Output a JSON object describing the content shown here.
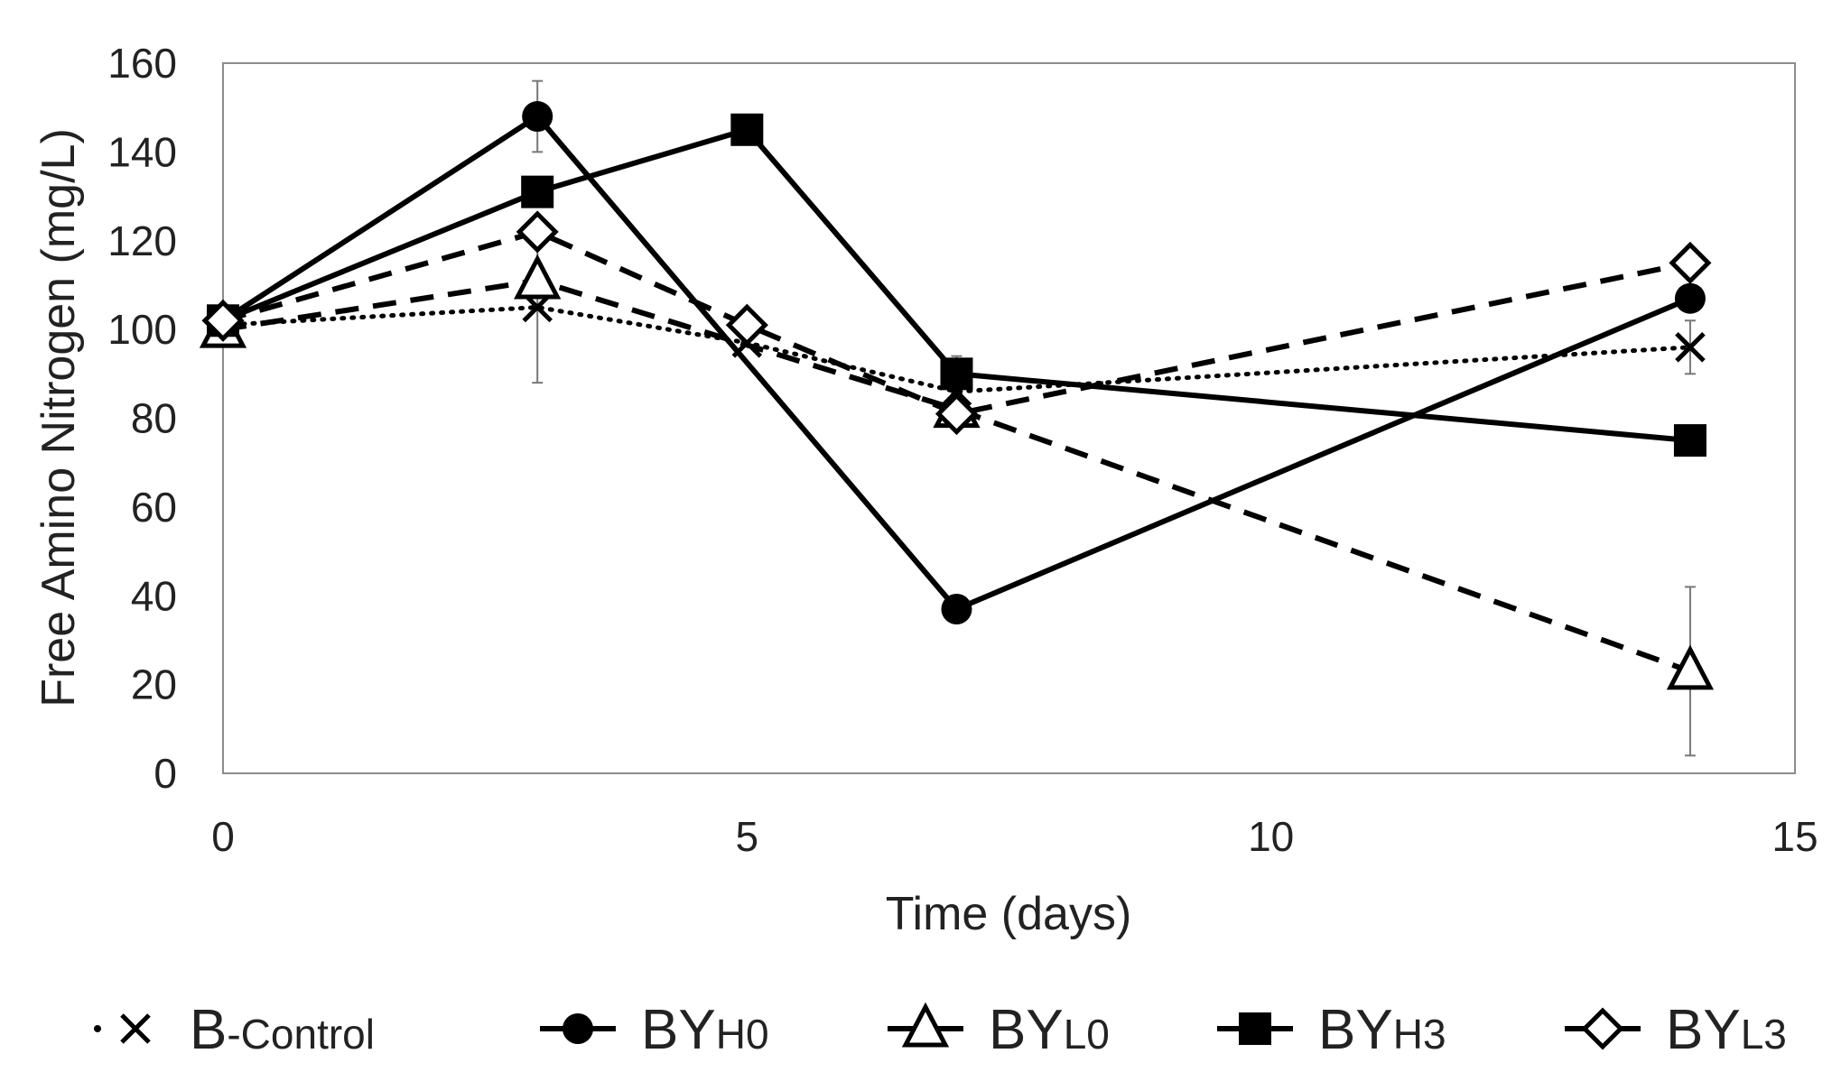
{
  "chart_data": {
    "type": "line",
    "title": "",
    "xlabel": "Time (days)",
    "ylabel": "Free Amino Nitrogen (mg/L)",
    "xlim": [
      0,
      15
    ],
    "ylim": [
      0,
      160
    ],
    "xticks": [
      0,
      5,
      10,
      15
    ],
    "yticks": [
      0,
      20,
      40,
      60,
      80,
      100,
      120,
      140,
      160
    ],
    "grid": false,
    "legend_position": "bottom",
    "series": [
      {
        "name": "B-Control",
        "legend_main": "B",
        "legend_sub": "-Control",
        "marker": "x",
        "line": "dotted",
        "x": [
          0,
          3,
          5,
          7,
          14
        ],
        "y": [
          101,
          105,
          97,
          86,
          96
        ],
        "err": [
          0,
          17,
          0,
          8,
          6
        ]
      },
      {
        "name": "BYH0",
        "legend_main": "BY",
        "legend_sub": "H0",
        "marker": "circle",
        "line": "solid",
        "x": [
          0,
          3,
          7,
          14
        ],
        "y": [
          102,
          148,
          37,
          107
        ],
        "err": [
          0,
          8,
          0,
          0
        ]
      },
      {
        "name": "BYL0",
        "legend_main": "BY",
        "legend_sub": "L0",
        "marker": "triangle",
        "line": "dashed",
        "x": [
          0,
          3,
          7,
          14
        ],
        "y": [
          100,
          111,
          82,
          23
        ],
        "err": [
          0,
          0,
          0,
          19
        ]
      },
      {
        "name": "BYH3",
        "legend_main": "BY",
        "legend_sub": "H3",
        "marker": "square",
        "line": "solid",
        "x": [
          0,
          3,
          5,
          7,
          14
        ],
        "y": [
          102,
          131,
          145,
          90,
          75
        ],
        "err": [
          0,
          0,
          0,
          0,
          0
        ]
      },
      {
        "name": "BYL3",
        "legend_main": "BY",
        "legend_sub": "L3",
        "marker": "diamond",
        "line": "dashed",
        "x": [
          0,
          3,
          5,
          7,
          14
        ],
        "y": [
          102,
          122,
          101,
          81,
          115
        ],
        "err": [
          0,
          0,
          0,
          0,
          0
        ]
      }
    ]
  }
}
